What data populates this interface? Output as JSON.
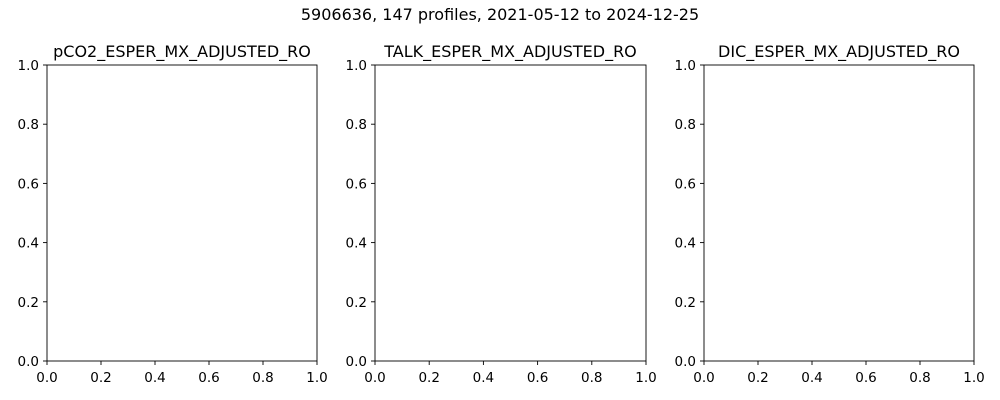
{
  "figure": {
    "suptitle": "5906636, 147 profiles, 2021-05-12 to 2024-12-25"
  },
  "chart_data": [
    {
      "type": "line",
      "title": "pCO2_ESPER_MX_ADJUSTED_RO",
      "xlabel": "",
      "ylabel": "",
      "xlim": [
        0,
        1
      ],
      "ylim": [
        0,
        1
      ],
      "xticks": [
        "0.0",
        "0.2",
        "0.4",
        "0.6",
        "0.8",
        "1.0"
      ],
      "yticks": [
        "0.0",
        "0.2",
        "0.4",
        "0.6",
        "0.8",
        "1.0"
      ],
      "series": []
    },
    {
      "type": "line",
      "title": "TALK_ESPER_MX_ADJUSTED_RO",
      "xlabel": "",
      "ylabel": "",
      "xlim": [
        0,
        1
      ],
      "ylim": [
        0,
        1
      ],
      "xticks": [
        "0.0",
        "0.2",
        "0.4",
        "0.6",
        "0.8",
        "1.0"
      ],
      "yticks": [
        "0.0",
        "0.2",
        "0.4",
        "0.6",
        "0.8",
        "1.0"
      ],
      "series": []
    },
    {
      "type": "line",
      "title": "DIC_ESPER_MX_ADJUSTED_RO",
      "xlabel": "",
      "ylabel": "",
      "xlim": [
        0,
        1
      ],
      "ylim": [
        0,
        1
      ],
      "xticks": [
        "0.0",
        "0.2",
        "0.4",
        "0.6",
        "0.8",
        "1.0"
      ],
      "yticks": [
        "0.0",
        "0.2",
        "0.4",
        "0.6",
        "0.8",
        "1.0"
      ],
      "series": []
    }
  ]
}
